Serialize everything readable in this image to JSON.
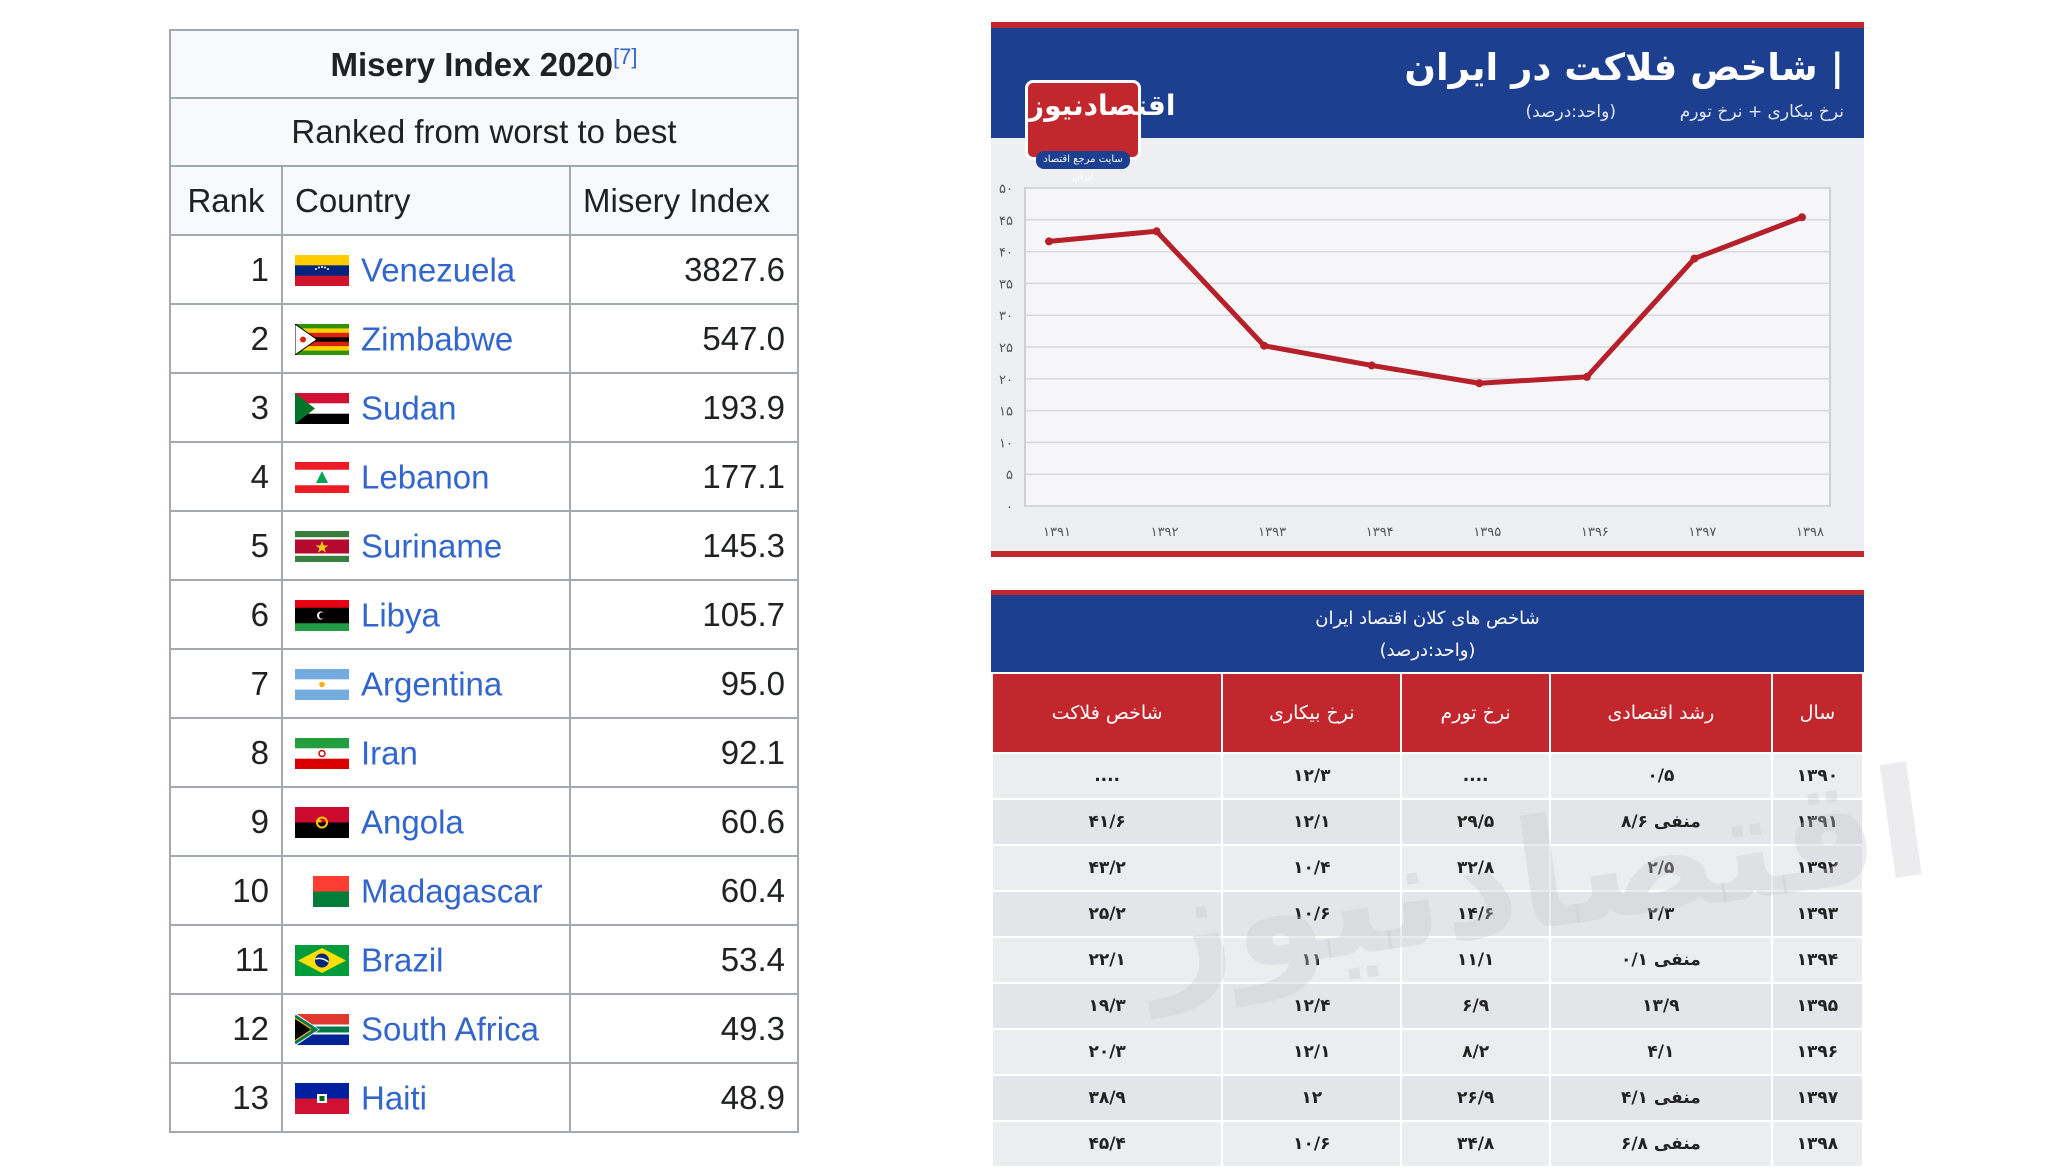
{
  "left_table": {
    "caption": "Misery Index 2020",
    "caption_ref": "[7]",
    "subcaption": "Ranked from worst to best",
    "headers": {
      "rank": "Rank",
      "country": "Country",
      "index": "Misery Index"
    },
    "rows": [
      {
        "rank": "1",
        "country": "Venezuela",
        "value": "3827.6",
        "flag": "venezuela-flag-icon"
      },
      {
        "rank": "2",
        "country": "Zimbabwe",
        "value": "547.0",
        "flag": "zimbabwe-flag-icon"
      },
      {
        "rank": "3",
        "country": "Sudan",
        "value": "193.9",
        "flag": "sudan-flag-icon"
      },
      {
        "rank": "4",
        "country": "Lebanon",
        "value": "177.1",
        "flag": "lebanon-flag-icon"
      },
      {
        "rank": "5",
        "country": "Suriname",
        "value": "145.3",
        "flag": "suriname-flag-icon"
      },
      {
        "rank": "6",
        "country": "Libya",
        "value": "105.7",
        "flag": "libya-flag-icon"
      },
      {
        "rank": "7",
        "country": "Argentina",
        "value": "95.0",
        "flag": "argentina-flag-icon"
      },
      {
        "rank": "8",
        "country": "Iran",
        "value": "92.1",
        "flag": "iran-flag-icon"
      },
      {
        "rank": "9",
        "country": "Angola",
        "value": "60.6",
        "flag": "angola-flag-icon"
      },
      {
        "rank": "10",
        "country": "Madagascar",
        "value": "60.4",
        "flag": "madagascar-flag-icon"
      },
      {
        "rank": "11",
        "country": "Brazil",
        "value": "53.4",
        "flag": "brazil-flag-icon"
      },
      {
        "rank": "12",
        "country": "South Africa",
        "value": "49.3",
        "flag": "south-africa-flag-icon"
      },
      {
        "rank": "13",
        "country": "Haiti",
        "value": "48.9",
        "flag": "haiti-flag-icon"
      }
    ]
  },
  "chart_panel": {
    "title": "| شاخص فلاکت در ایران",
    "subtitle": "نرخ بیکاری + نرخ تورم",
    "unit": "(واحد:درصد)",
    "logo_text": "اقتصادنیوز",
    "logo_tagline": "سایت مرجع اقتصاد ایران"
  },
  "chart_data": {
    "type": "line",
    "title": "| شاخص فلاکت در ایران",
    "subtitle": "نرخ بیکاری + نرخ تورم",
    "x": [
      "۱۳۹۱",
      "۱۳۹۲",
      "۱۳۹۳",
      "۱۳۹۴",
      "۱۳۹۵",
      "۱۳۹۶",
      "۱۳۹۷",
      "۱۳۹۸"
    ],
    "series": [
      {
        "values": [
          41.6,
          43.2,
          25.2,
          22.1,
          19.3,
          20.3,
          38.9,
          45.4
        ]
      }
    ],
    "y_ticks": [
      "۰",
      "۵",
      "۱۰",
      "۱۵",
      "۲۰",
      "۲۵",
      "۳۰",
      "۳۵",
      "۴۰",
      "۴۵",
      "۵۰"
    ],
    "ylim": [
      0,
      50
    ],
    "grid": true,
    "line_color": "#b5202b"
  },
  "macro_table": {
    "title_line1": "شاخص های کلان اقتصاد ایران",
    "title_line2": "(واحد:درصد)",
    "headers": [
      "سال",
      "رشد اقتصادی",
      "نرخ تورم",
      "نرخ بیکاری",
      "شاخص فلاکت"
    ],
    "rows": [
      [
        "۱۳۹۰",
        "۰/۵",
        "....",
        "۱۲/۳",
        "...."
      ],
      [
        "۱۳۹۱",
        "منفی ۸/۶",
        "۲۹/۵",
        "۱۲/۱",
        "۴۱/۶"
      ],
      [
        "۱۳۹۲",
        "۲/۵",
        "۳۲/۸",
        "۱۰/۴",
        "۴۳/۲"
      ],
      [
        "۱۳۹۳",
        "۲/۳",
        "۱۴/۶",
        "۱۰/۶",
        "۲۵/۲"
      ],
      [
        "۱۳۹۴",
        "منفی ۰/۱",
        "۱۱/۱",
        "۱۱",
        "۲۲/۱"
      ],
      [
        "۱۳۹۵",
        "۱۳/۹",
        "۶/۹",
        "۱۲/۴",
        "۱۹/۳"
      ],
      [
        "۱۳۹۶",
        "۴/۱",
        "۸/۲",
        "۱۲/۱",
        "۲۰/۳"
      ],
      [
        "۱۳۹۷",
        "منفی ۴/۱",
        "۲۶/۹",
        "۱۲",
        "۳۸/۹"
      ],
      [
        "۱۳۹۸",
        "منفی ۶/۸",
        "۳۴/۸",
        "۱۰/۶",
        "۴۵/۴"
      ]
    ],
    "watermark": "اقتصادنیوز"
  }
}
